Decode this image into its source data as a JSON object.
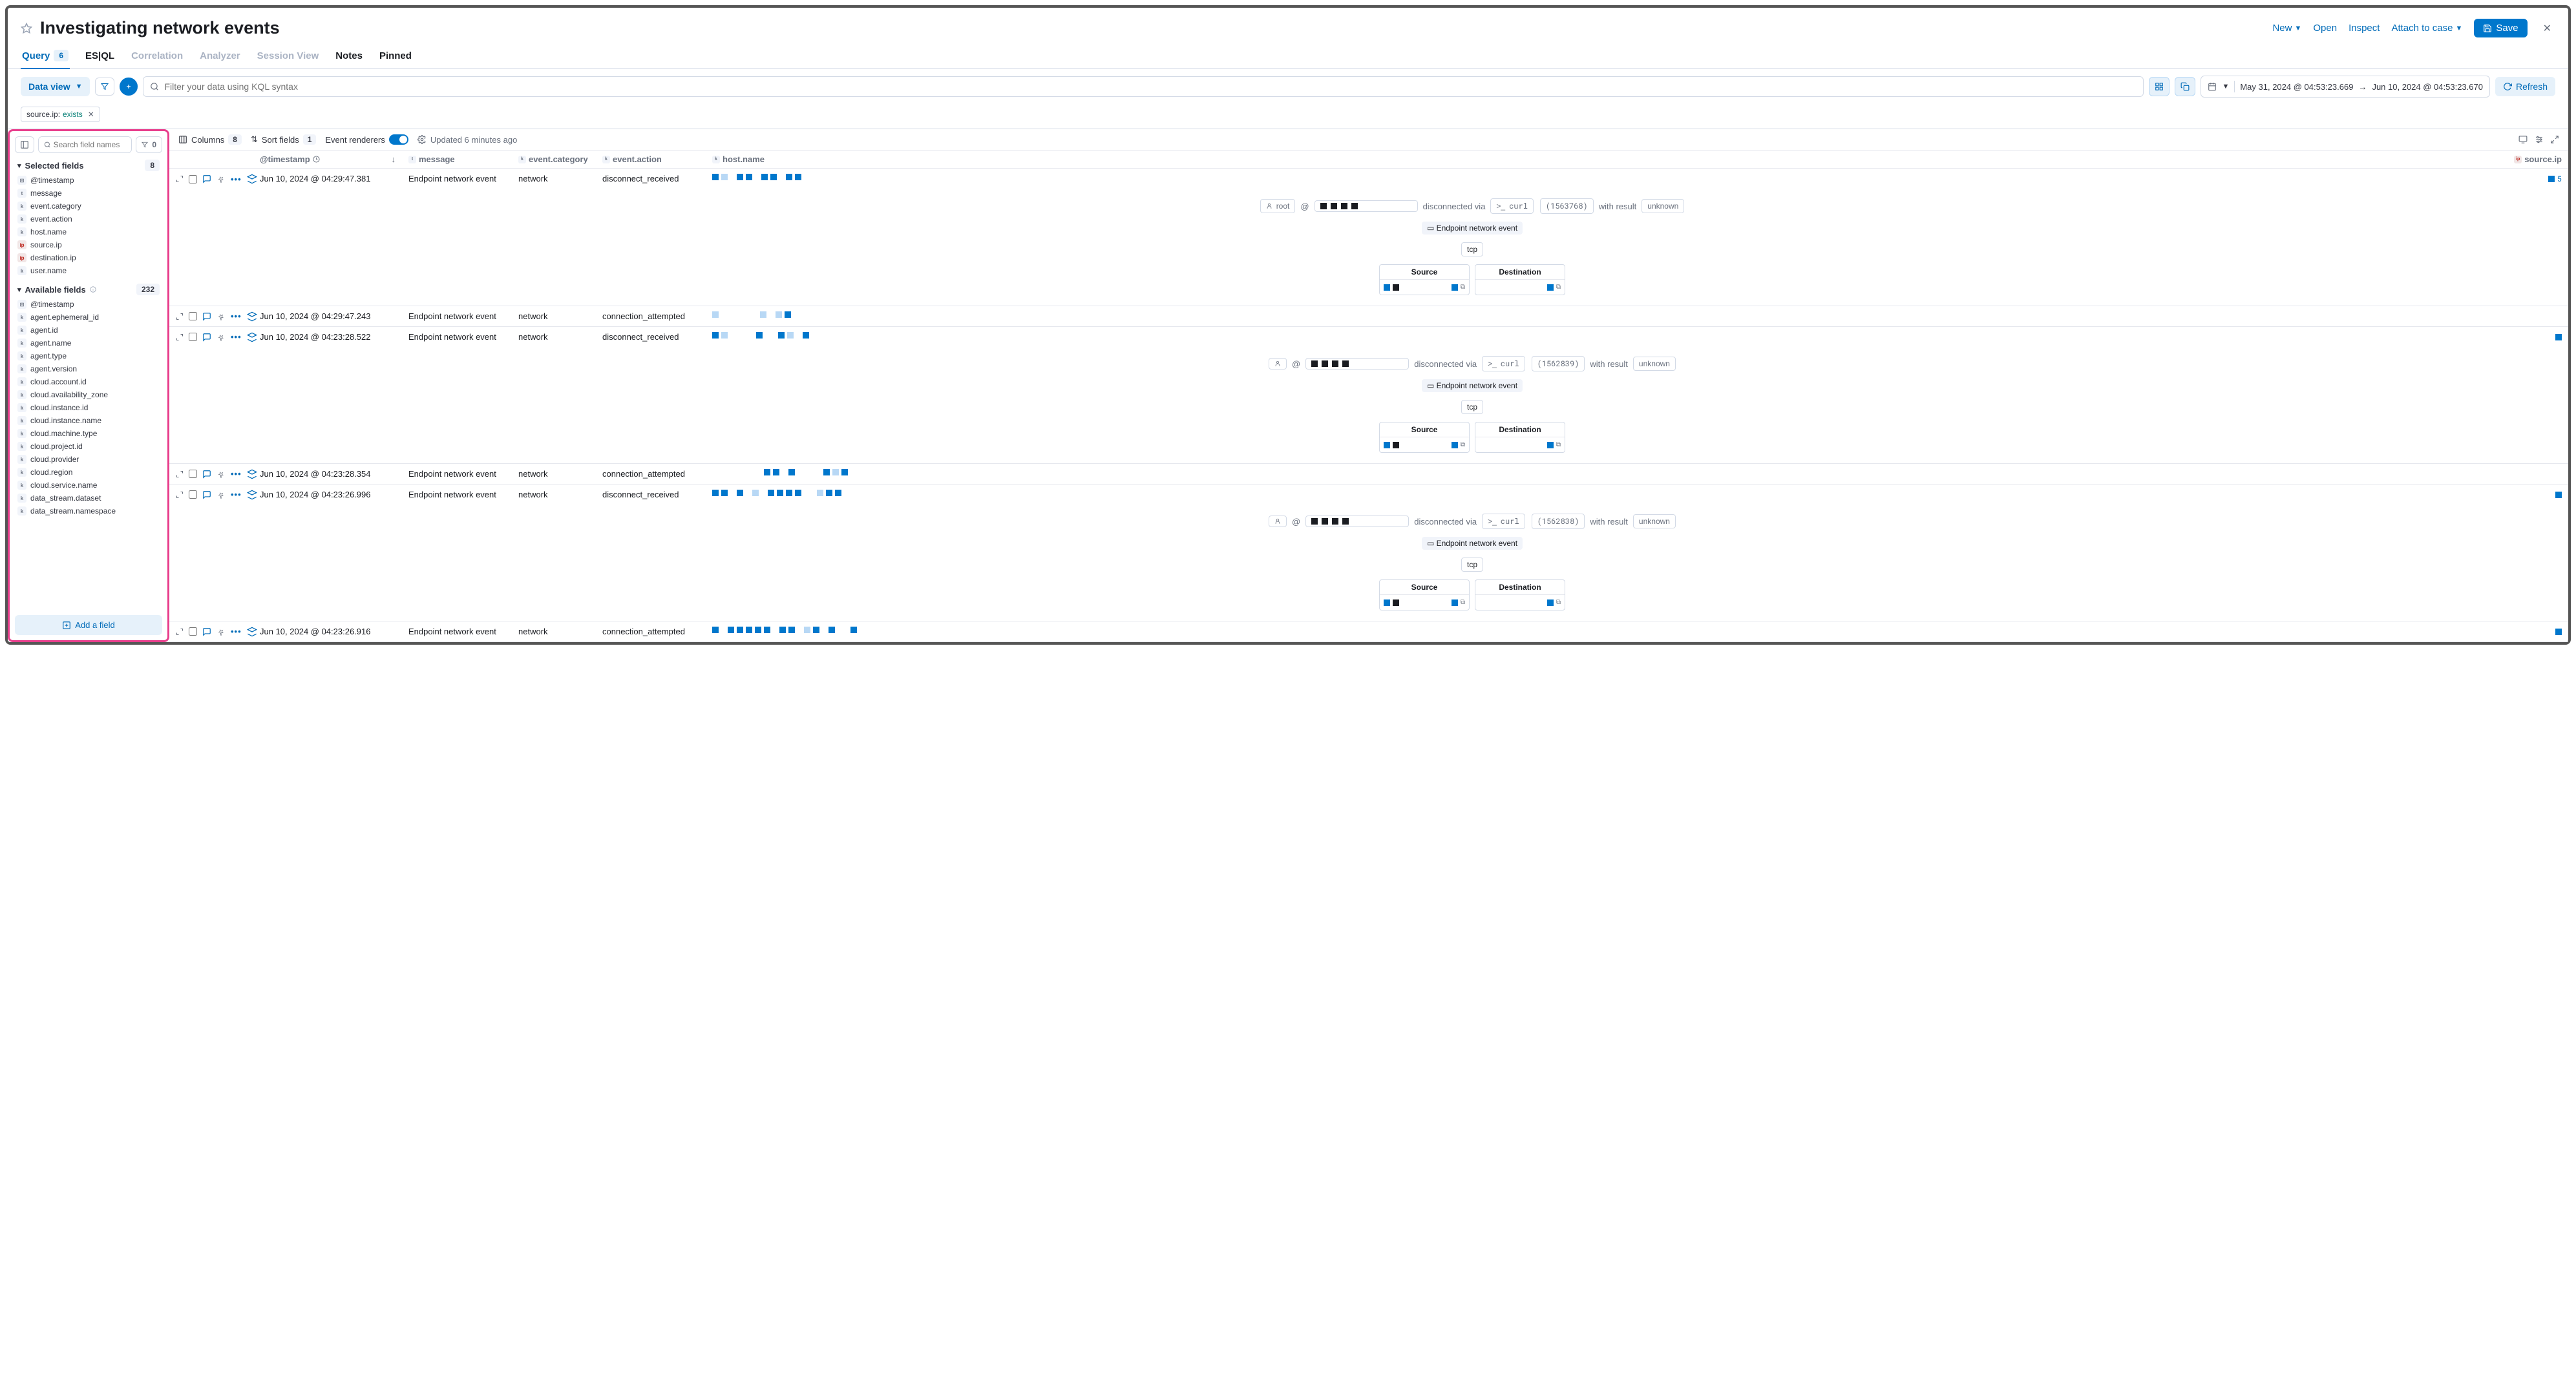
{
  "header": {
    "title": "Investigating network events",
    "actions": {
      "new": "New",
      "open": "Open",
      "inspect": "Inspect",
      "attach": "Attach to case",
      "save": "Save"
    }
  },
  "tabs": {
    "query": "Query",
    "query_count": "6",
    "esql": "ES|QL",
    "correlation": "Correlation",
    "analyzer": "Analyzer",
    "session": "Session View",
    "notes": "Notes",
    "pinned": "Pinned"
  },
  "toolbar": {
    "dataview": "Data view",
    "search_placeholder": "Filter your data using KQL syntax",
    "date_from": "May 31, 2024 @ 04:53:23.669",
    "date_to": "Jun 10, 2024 @ 04:53:23.670",
    "refresh": "Refresh"
  },
  "filter": {
    "key": "source.ip:",
    "val": "exists"
  },
  "sidebar": {
    "search_placeholder": "Search field names",
    "filter_count": "0",
    "selected_label": "Selected fields",
    "selected_count": "8",
    "selected_fields": [
      {
        "type": "date",
        "name": "@timestamp"
      },
      {
        "type": "t",
        "name": "message"
      },
      {
        "type": "k",
        "name": "event.category"
      },
      {
        "type": "k",
        "name": "event.action"
      },
      {
        "type": "k",
        "name": "host.name"
      },
      {
        "type": "ip",
        "name": "source.ip"
      },
      {
        "type": "ip",
        "name": "destination.ip"
      },
      {
        "type": "k",
        "name": "user.name"
      }
    ],
    "available_label": "Available fields",
    "available_count": "232",
    "available_fields": [
      {
        "type": "date",
        "name": "@timestamp"
      },
      {
        "type": "k",
        "name": "agent.ephemeral_id"
      },
      {
        "type": "k",
        "name": "agent.id"
      },
      {
        "type": "k",
        "name": "agent.name"
      },
      {
        "type": "k",
        "name": "agent.type"
      },
      {
        "type": "k",
        "name": "agent.version"
      },
      {
        "type": "k",
        "name": "cloud.account.id"
      },
      {
        "type": "k",
        "name": "cloud.availability_zone"
      },
      {
        "type": "k",
        "name": "cloud.instance.id"
      },
      {
        "type": "k",
        "name": "cloud.instance.name"
      },
      {
        "type": "k",
        "name": "cloud.machine.type"
      },
      {
        "type": "k",
        "name": "cloud.project.id"
      },
      {
        "type": "k",
        "name": "cloud.provider"
      },
      {
        "type": "k",
        "name": "cloud.region"
      },
      {
        "type": "k",
        "name": "cloud.service.name"
      },
      {
        "type": "k",
        "name": "data_stream.dataset"
      },
      {
        "type": "k",
        "name": "data_stream.namespace"
      }
    ],
    "add_field": "Add a field"
  },
  "table_toolbar": {
    "columns": "Columns",
    "columns_count": "8",
    "sort": "Sort fields",
    "sort_count": "1",
    "renderers": "Event renderers",
    "updated": "Updated 6 minutes ago"
  },
  "columns": {
    "timestamp": "@timestamp",
    "message": "message",
    "category": "event.category",
    "action": "event.action",
    "host": "host.name",
    "source": "source.ip"
  },
  "rows": [
    {
      "ts": "Jun 10, 2024 @ 04:29:47.381",
      "msg": "Endpoint network event",
      "cat": "network",
      "act": "disconnect_received",
      "expanded": true,
      "user": "root",
      "via": "disconnected via",
      "cmd": "curl",
      "pid": "(1563768)",
      "result_lbl": "with result",
      "result": "unknown",
      "badge": "Endpoint network event",
      "proto": "tcp",
      "src_lbl": "Source",
      "dest_lbl": "Destination",
      "host_blocks": [
        "b",
        "l",
        "",
        "b",
        "b",
        "",
        "b",
        "b",
        "",
        "b",
        "b"
      ],
      "src_blocks": [
        "b",
        "5"
      ]
    },
    {
      "ts": "Jun 10, 2024 @ 04:29:47.243",
      "msg": "Endpoint network event",
      "cat": "network",
      "act": "connection_attempted",
      "expanded": false,
      "host_blocks": [
        "l",
        "",
        "",
        "",
        "",
        "",
        "",
        "l",
        "",
        "l",
        "b"
      ],
      "src_blocks": [
        ""
      ]
    },
    {
      "ts": "Jun 10, 2024 @ 04:23:28.522",
      "msg": "Endpoint network event",
      "cat": "network",
      "act": "disconnect_received",
      "expanded": true,
      "user": "",
      "via": "disconnected via",
      "cmd": "curl",
      "pid": "(1562839)",
      "result_lbl": "with result",
      "result": "unknown",
      "badge": "Endpoint network event",
      "proto": "tcp",
      "src_lbl": "Source",
      "dest_lbl": "Destination",
      "host_blocks": [
        "b",
        "l",
        "",
        "",
        "",
        "",
        "b",
        "",
        "",
        "b",
        "l",
        "",
        "b"
      ],
      "src_blocks": [
        "b"
      ]
    },
    {
      "ts": "Jun 10, 2024 @ 04:23:28.354",
      "msg": "Endpoint network event",
      "cat": "network",
      "act": "connection_attempted",
      "expanded": false,
      "host_blocks": [
        "",
        "",
        "",
        "",
        "",
        "",
        "",
        "",
        "b",
        "b",
        "",
        "b",
        "",
        "",
        "",
        "",
        "b",
        "l",
        "b"
      ],
      "src_blocks": [
        ""
      ]
    },
    {
      "ts": "Jun 10, 2024 @ 04:23:26.996",
      "msg": "Endpoint network event",
      "cat": "network",
      "act": "disconnect_received",
      "expanded": true,
      "user": "",
      "via": "disconnected via",
      "cmd": "curl",
      "pid": "(1562838)",
      "result_lbl": "with result",
      "result": "unknown",
      "badge": "Endpoint network event",
      "proto": "tcp",
      "src_lbl": "Source",
      "dest_lbl": "Destination",
      "host_blocks": [
        "b",
        "b",
        "",
        "b",
        "",
        "l",
        "",
        "b",
        "b",
        "b",
        "b",
        "",
        "",
        "l",
        "b",
        "b"
      ],
      "src_blocks": [
        "b"
      ]
    },
    {
      "ts": "Jun 10, 2024 @ 04:23:26.916",
      "msg": "Endpoint network event",
      "cat": "network",
      "act": "connection_attempted",
      "expanded": false,
      "host_blocks": [
        "b",
        "",
        "b",
        "b",
        "b",
        "b",
        "b",
        "",
        "b",
        "b",
        "",
        "l",
        "b",
        "",
        "b",
        "",
        "",
        "b"
      ],
      "src_blocks": [
        "b"
      ]
    }
  ]
}
